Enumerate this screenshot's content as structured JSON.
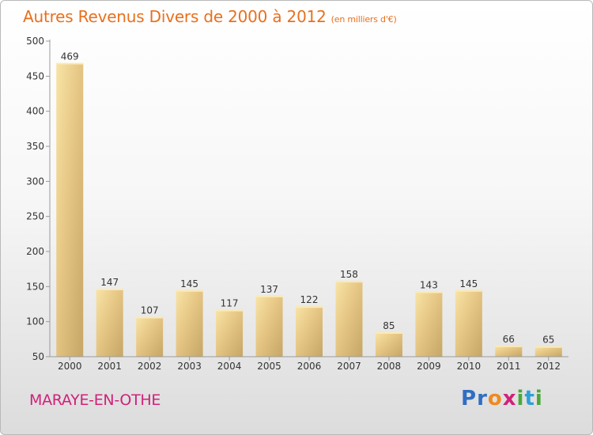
{
  "header": {
    "title": "Autres Revenus Divers de 2000 à 2012",
    "subtitle": "(en milliers d'€)"
  },
  "footer": {
    "town": "MARAYE-EN-OTHE",
    "logo": "Proxiti"
  },
  "colors": {
    "title": "#e8701e",
    "town": "#d0217a",
    "bar_light": "#f6dc92",
    "bar_dark": "#c7a868"
  },
  "chart_data": {
    "type": "bar",
    "title": "Autres Revenus Divers de 2000 à 2012",
    "xlabel": "",
    "ylabel": "",
    "ylim": [
      50,
      500
    ],
    "yticks": [
      50,
      100,
      150,
      200,
      250,
      300,
      350,
      400,
      450,
      500
    ],
    "grid": false,
    "categories": [
      "2000",
      "2001",
      "2002",
      "2003",
      "2004",
      "2005",
      "2006",
      "2007",
      "2008",
      "2009",
      "2010",
      "2011",
      "2012"
    ],
    "values": [
      469,
      147,
      107,
      145,
      117,
      137,
      122,
      158,
      85,
      143,
      145,
      66,
      65
    ]
  }
}
